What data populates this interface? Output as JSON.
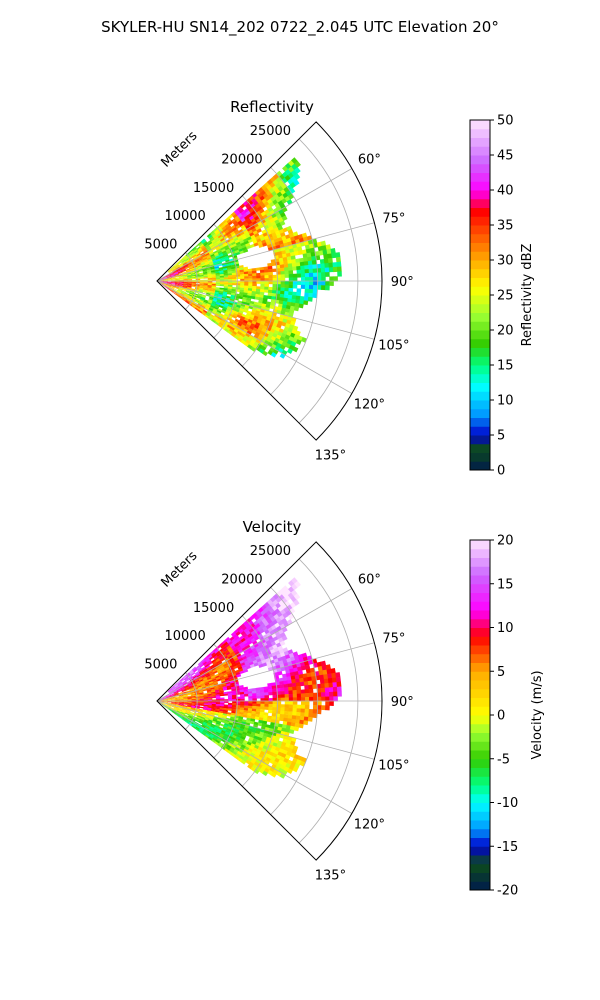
{
  "figure_title": "SKYLER-HU  SN14_202  0722_2.045 UTC Elevation 20°",
  "chart_data": [
    {
      "type": "polar-ppi",
      "title": "Reflectivity",
      "range_label": "Meters",
      "range_ticks": [
        5000,
        10000,
        15000,
        20000,
        25000
      ],
      "range_max": 28000,
      "azimuth_ticks": [
        "60°",
        "75°",
        "90°",
        "105°",
        "120°",
        "135°"
      ],
      "azimuth_range": [
        45,
        135
      ],
      "colorbar": {
        "label": "Reflectivity dBZ",
        "min": 0,
        "max": 50,
        "ticks": [
          0,
          5,
          10,
          15,
          20,
          25,
          30,
          35,
          40,
          45,
          50
        ],
        "stops": [
          {
            "v": 0,
            "c": "#001a4d"
          },
          {
            "v": 3,
            "c": "#0d4d1a"
          },
          {
            "v": 5,
            "c": "#0000cc"
          },
          {
            "v": 8,
            "c": "#0099ff"
          },
          {
            "v": 12,
            "c": "#00ffff"
          },
          {
            "v": 15,
            "c": "#00ff80"
          },
          {
            "v": 18,
            "c": "#33cc00"
          },
          {
            "v": 22,
            "c": "#99ff33"
          },
          {
            "v": 26,
            "c": "#ffff00"
          },
          {
            "v": 30,
            "c": "#ffaa00"
          },
          {
            "v": 34,
            "c": "#ff4d00"
          },
          {
            "v": 37,
            "c": "#ff0000"
          },
          {
            "v": 40,
            "c": "#ff00ff"
          },
          {
            "v": 44,
            "c": "#cc66ff"
          },
          {
            "v": 50,
            "c": "#ffe6ff"
          }
        ]
      }
    },
    {
      "type": "polar-ppi",
      "title": "Velocity",
      "range_label": "Meters",
      "range_ticks": [
        5000,
        10000,
        15000,
        20000,
        25000
      ],
      "range_max": 28000,
      "azimuth_ticks": [
        "60°",
        "75°",
        "90°",
        "105°",
        "120°",
        "135°"
      ],
      "azimuth_range": [
        45,
        135
      ],
      "colorbar": {
        "label": "Velocity (m/s)",
        "min": -20,
        "max": 20,
        "ticks": [
          -20,
          -15,
          -10,
          -5,
          0,
          5,
          10,
          15,
          20
        ],
        "stops": [
          {
            "v": -20,
            "c": "#001a4d"
          },
          {
            "v": -17,
            "c": "#0d4d1a"
          },
          {
            "v": -15,
            "c": "#0000cc"
          },
          {
            "v": -13,
            "c": "#0099ff"
          },
          {
            "v": -10,
            "c": "#00ffff"
          },
          {
            "v": -8,
            "c": "#00ff80"
          },
          {
            "v": -5,
            "c": "#33cc00"
          },
          {
            "v": -2,
            "c": "#99ff33"
          },
          {
            "v": 0,
            "c": "#ffff00"
          },
          {
            "v": 5,
            "c": "#ffaa00"
          },
          {
            "v": 9,
            "c": "#ff0000"
          },
          {
            "v": 12,
            "c": "#ff00ff"
          },
          {
            "v": 16,
            "c": "#cc66ff"
          },
          {
            "v": 20,
            "c": "#ffe6ff"
          }
        ]
      }
    }
  ]
}
